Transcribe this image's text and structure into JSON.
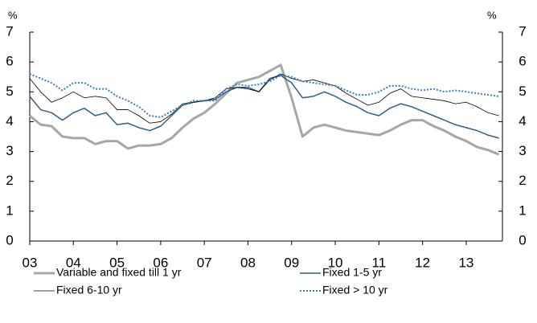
{
  "chart_data": {
    "type": "line",
    "y_unit_left": "%",
    "y_unit_right": "%",
    "x": [
      2003,
      2003.25,
      2003.5,
      2003.75,
      2004,
      2004.25,
      2004.5,
      2004.75,
      2005,
      2005.25,
      2005.5,
      2005.75,
      2006,
      2006.25,
      2006.5,
      2006.75,
      2007,
      2007.25,
      2007.5,
      2007.75,
      2008,
      2008.25,
      2008.5,
      2008.75,
      2009,
      2009.25,
      2009.5,
      2009.75,
      2010,
      2010.25,
      2010.5,
      2010.75,
      2011,
      2011.25,
      2011.5,
      2011.75,
      2012,
      2012.25,
      2012.5,
      2012.75,
      2013,
      2013.25,
      2013.5,
      2013.75
    ],
    "xlim": [
      2003,
      2013.83
    ],
    "xticks": [
      {
        "value": 2003,
        "label": "03"
      },
      {
        "value": 2004,
        "label": "04"
      },
      {
        "value": 2005,
        "label": "05"
      },
      {
        "value": 2006,
        "label": "06"
      },
      {
        "value": 2007,
        "label": "07"
      },
      {
        "value": 2008,
        "label": "08"
      },
      {
        "value": 2009,
        "label": "09"
      },
      {
        "value": 2010,
        "label": "10"
      },
      {
        "value": 2011,
        "label": "11"
      },
      {
        "value": 2012,
        "label": "12"
      },
      {
        "value": 2013,
        "label": "13"
      }
    ],
    "ylim": [
      0,
      7
    ],
    "yticks": [
      0,
      1,
      2,
      3,
      4,
      5,
      6,
      7
    ],
    "series": [
      {
        "name": "Variable and fixed till 1 yr",
        "color": "#a6a6a6",
        "style": "thick",
        "values": [
          4.2,
          3.9,
          3.85,
          3.5,
          3.45,
          3.45,
          3.25,
          3.35,
          3.35,
          3.1,
          3.2,
          3.2,
          3.25,
          3.45,
          3.8,
          4.1,
          4.3,
          4.6,
          4.95,
          5.3,
          5.4,
          5.5,
          5.7,
          5.9,
          4.8,
          3.5,
          3.8,
          3.9,
          3.8,
          3.7,
          3.65,
          3.6,
          3.55,
          3.7,
          3.9,
          4.05,
          4.05,
          3.85,
          3.7,
          3.5,
          3.35,
          3.15,
          3.05,
          2.9
        ]
      },
      {
        "name": "Fixed 1-5 yr",
        "color": "#2e5f8a",
        "style": "solid",
        "values": [
          4.85,
          4.4,
          4.3,
          4.05,
          4.3,
          4.45,
          4.2,
          4.3,
          3.9,
          3.95,
          3.8,
          3.7,
          3.85,
          4.2,
          4.55,
          4.65,
          4.7,
          4.75,
          5.0,
          5.15,
          5.15,
          5.0,
          5.45,
          5.55,
          5.3,
          4.8,
          4.85,
          5.0,
          4.85,
          4.65,
          4.5,
          4.3,
          4.2,
          4.45,
          4.6,
          4.5,
          4.35,
          4.2,
          4.05,
          3.9,
          3.8,
          3.7,
          3.55,
          3.45
        ]
      },
      {
        "name": "Fixed 6-10 yr",
        "color": "#000000",
        "style": "thin",
        "values": [
          5.45,
          5.0,
          4.65,
          4.8,
          5.0,
          4.8,
          4.85,
          4.8,
          4.4,
          4.4,
          4.2,
          3.95,
          4.0,
          4.25,
          4.6,
          4.65,
          4.7,
          4.8,
          5.1,
          5.15,
          5.1,
          5.0,
          5.4,
          5.6,
          5.45,
          5.35,
          5.4,
          5.3,
          5.2,
          4.95,
          4.75,
          4.55,
          4.65,
          4.95,
          5.1,
          4.85,
          4.8,
          4.75,
          4.7,
          4.6,
          4.65,
          4.5,
          4.3,
          4.2
        ]
      },
      {
        "name": "Fixed > 10 yr",
        "color": "#3a7ebf",
        "style": "dotted",
        "values": [
          5.6,
          5.45,
          5.3,
          5.05,
          5.3,
          5.3,
          5.1,
          5.1,
          4.85,
          4.7,
          4.5,
          4.2,
          4.15,
          4.35,
          4.55,
          4.7,
          4.7,
          4.7,
          5.1,
          5.25,
          5.2,
          5.25,
          5.35,
          5.55,
          5.5,
          5.35,
          5.3,
          5.25,
          5.2,
          5.05,
          4.9,
          4.9,
          5.0,
          5.2,
          5.2,
          5.1,
          5.05,
          5.1,
          5.0,
          5.05,
          5.0,
          4.95,
          4.9,
          4.85
        ]
      }
    ]
  }
}
